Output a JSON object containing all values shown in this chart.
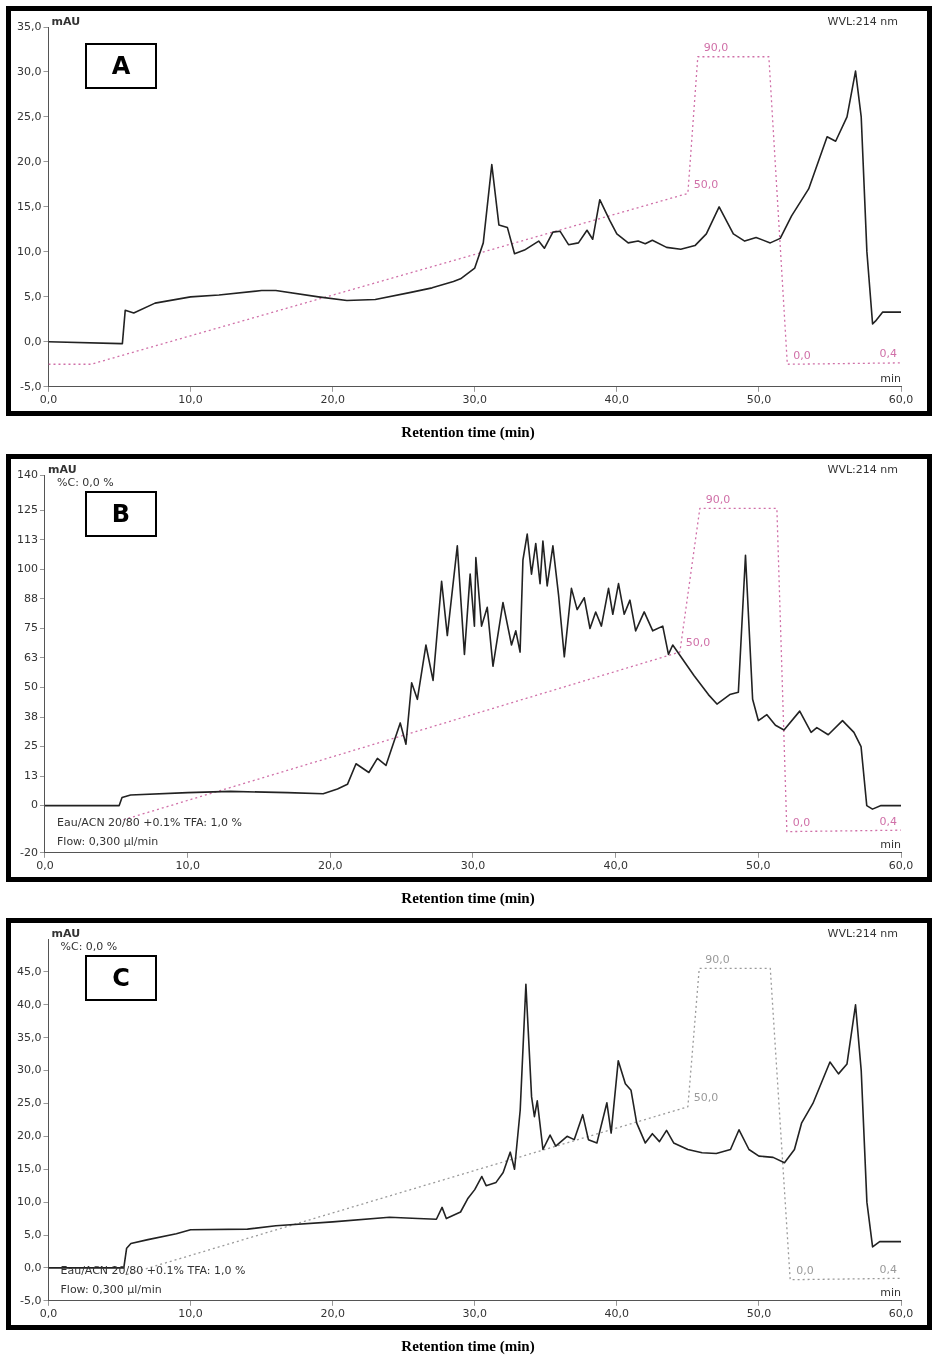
{
  "chart_data": [
    {
      "type": "line",
      "title": "A",
      "xlabel": "Retention  time (min)",
      "ylabel": "mAU",
      "xlim": [
        0,
        60
      ],
      "xticks": [
        {
          "value": 0,
          "label": "0,0"
        },
        {
          "value": 10,
          "label": "10,0"
        },
        {
          "value": 20,
          "label": "20,0"
        },
        {
          "value": 30,
          "label": "30,0"
        },
        {
          "value": 40,
          "label": "40,0"
        },
        {
          "value": 50,
          "label": "50,0"
        },
        {
          "value": 60,
          "label": "60,0"
        }
      ],
      "ylim": [
        -5,
        35
      ],
      "yticks": [
        {
          "value": -5,
          "label": "-5,0"
        },
        {
          "value": 0,
          "label": "0,0"
        },
        {
          "value": 5,
          "label": "5,0"
        },
        {
          "value": 10,
          "label": "10,0"
        },
        {
          "value": 15,
          "label": "15,0"
        },
        {
          "value": 20,
          "label": "20,0"
        },
        {
          "value": 25,
          "label": "25,0"
        },
        {
          "value": 30,
          "label": "30,0"
        },
        {
          "value": 35,
          "label": "35,0"
        }
      ],
      "series": [
        {
          "color": "#222222",
          "x": [
            0,
            5.1,
            5.2,
            5.4,
            6,
            7.5,
            10,
            12,
            15,
            16,
            19,
            21,
            23,
            25.5,
            27,
            28.5,
            29,
            30,
            30.6,
            31.2,
            31.7,
            32.3,
            32.8,
            33.5,
            34.5,
            34.9,
            35.5,
            36,
            36.6,
            37.3,
            37.9,
            38.3,
            38.8,
            39.5,
            40,
            40.8,
            41.5,
            42,
            42.5,
            43.5,
            44.5,
            45.5,
            46.3,
            47.2,
            48.2,
            49,
            49.8,
            50.8,
            51.5,
            52.3,
            53.5,
            54.8,
            55.4,
            56.2,
            56.8,
            57.2,
            57.6,
            58,
            58.2,
            58.7,
            60
          ],
          "values": [
            0,
            -0.2,
            -0.2,
            3.5,
            3.2,
            4.3,
            5,
            5.2,
            5.7,
            5.7,
            5,
            4.6,
            4.7,
            5.5,
            6,
            6.7,
            7,
            8.2,
            11,
            19.7,
            13,
            12.7,
            9.8,
            10.2,
            11.2,
            10.4,
            12.2,
            12.3,
            10.8,
            11,
            12.4,
            11.4,
            15.8,
            13.5,
            12,
            11,
            11.2,
            10.9,
            11.3,
            10.5,
            10.3,
            10.7,
            12,
            15,
            12,
            11.2,
            11.6,
            11,
            11.5,
            14,
            17,
            22.8,
            22.3,
            25,
            30.1,
            25,
            10,
            2,
            2.3,
            3.3,
            3.3
          ]
        },
        {
          "color": "#d070a8",
          "line_style": "dotted",
          "axis": "y2",
          "x": [
            0,
            3,
            45,
            45.7,
            50.7,
            52,
            60
          ],
          "values": [
            0,
            0,
            50,
            90,
            90,
            0,
            0.4
          ],
          "value_labels": [
            null,
            null,
            "50,0",
            "90,0",
            null,
            "0,0",
            "0,4"
          ]
        }
      ],
      "y2lim": [
        -6.6,
        98.7
      ],
      "annotations": [
        "WVL:214 nm",
        "min"
      ]
    },
    {
      "type": "line",
      "title": "B",
      "xlabel": "Retention  time (min)",
      "ylabel": "mAU",
      "xlim": [
        0,
        60
      ],
      "xticks": [
        {
          "value": 0,
          "label": "0,0"
        },
        {
          "value": 10,
          "label": "10,0"
        },
        {
          "value": 20,
          "label": "20,0"
        },
        {
          "value": 30,
          "label": "30,0"
        },
        {
          "value": 40,
          "label": "40,0"
        },
        {
          "value": 50,
          "label": "50,0"
        },
        {
          "value": 60,
          "label": "60,0"
        }
      ],
      "ylim": [
        -20,
        140
      ],
      "yticks": [
        {
          "value": -20,
          "label": "-20"
        },
        0,
        {
          "value": 12.5,
          "label": "13"
        },
        25,
        {
          "value": 37.5,
          "label": "38"
        },
        50,
        {
          "value": 62.5,
          "label": "63"
        },
        75,
        {
          "value": 87.5,
          "label": "88"
        },
        100,
        {
          "value": 112.5,
          "label": "113"
        },
        125,
        140
      ],
      "series": [
        {
          "color": "#222222",
          "x": [
            0,
            5.2,
            5.4,
            6,
            10,
            13,
            17,
            19.5,
            20.5,
            21.2,
            21.8,
            22.7,
            23.3,
            23.9,
            24.9,
            25.3,
            25.7,
            26.1,
            26.7,
            27.2,
            27.8,
            28.2,
            28.9,
            29.4,
            29.8,
            30.1,
            30.2,
            30.6,
            31,
            31.4,
            32.1,
            32.7,
            33,
            33.3,
            33.5,
            33.8,
            34.1,
            34.4,
            34.7,
            34.9,
            35.2,
            35.6,
            36,
            36.4,
            36.9,
            37.3,
            37.8,
            38.2,
            38.6,
            39,
            39.5,
            39.8,
            40.2,
            40.6,
            41,
            41.4,
            42,
            42.6,
            43.3,
            43.7,
            44,
            45.5,
            46.5,
            47.1,
            48,
            48.6,
            49.1,
            49.6,
            50,
            50.6,
            51.2,
            51.8,
            52.9,
            53.7,
            54.1,
            54.9,
            55.9,
            56.7,
            57.2,
            57.6,
            58,
            58.6,
            60
          ],
          "values": [
            0,
            0,
            3.4,
            4.5,
            5.5,
            6,
            5.5,
            5,
            7,
            9,
            17.7,
            14,
            20,
            17,
            35,
            26,
            52,
            45,
            68,
            53,
            95,
            72,
            110,
            64,
            98,
            76,
            105,
            76,
            84,
            59,
            86,
            68,
            74,
            65,
            104,
            115,
            98,
            111,
            94,
            112,
            93,
            110,
            89,
            63,
            92,
            83,
            88,
            75,
            82,
            76,
            92,
            81,
            94,
            81,
            87,
            74,
            82,
            74,
            76,
            64,
            68,
            55,
            47,
            43,
            47,
            48,
            106,
            45,
            36,
            38.5,
            34,
            32,
            40,
            31,
            33,
            30,
            36,
            31,
            25,
            0,
            -1.5,
            0,
            0
          ]
        },
        {
          "color": "#d070a8",
          "line_style": "dotted",
          "axis": "y2",
          "x": [
            5.5,
            44.5,
            45.9,
            51.3,
            52,
            60
          ],
          "values": [
            3.3,
            50,
            90,
            90,
            0,
            0.4
          ],
          "value_labels": [
            null,
            "50,0",
            "90,0",
            null,
            "0,0",
            "0,4"
          ]
        }
      ],
      "y2lim": [
        -5.9,
        99.3
      ],
      "annotations": [
        "WVL:214 nm",
        "min",
        "%C: 0,0 %",
        "Eau/ACN 20/80 +0.1% TFA: 1,0 %",
        "Flow: 0,300 µl/min"
      ]
    },
    {
      "type": "line",
      "title": "C",
      "xlabel": "Retention  time (min)",
      "ylabel": "mAU",
      "xlim": [
        0,
        60
      ],
      "xticks": [
        {
          "value": 0,
          "label": "0,0"
        },
        {
          "value": 10,
          "label": "10,0"
        },
        {
          "value": 20,
          "label": "20,0"
        },
        {
          "value": 30,
          "label": "30,0"
        },
        {
          "value": 40,
          "label": "40,0"
        },
        {
          "value": 50,
          "label": "50,0"
        },
        {
          "value": 60,
          "label": "60,0"
        }
      ],
      "ylim": [
        -5,
        50
      ],
      "yticks": [
        {
          "value": -5,
          "label": "-5,0"
        },
        {
          "value": 0,
          "label": "0,0"
        },
        {
          "value": 5,
          "label": "5,0"
        },
        {
          "value": 10,
          "label": "10,0"
        },
        {
          "value": 15,
          "label": "15,0"
        },
        {
          "value": 20,
          "label": "20,0"
        },
        {
          "value": 25,
          "label": "25,0"
        },
        {
          "value": 30,
          "label": "30,0"
        },
        {
          "value": 35,
          "label": "35,0"
        },
        {
          "value": 40,
          "label": "40,0"
        },
        {
          "value": 45,
          "label": "45,0"
        }
      ],
      "series": [
        {
          "color": "#222222",
          "x": [
            0,
            5.3,
            5.5,
            5.8,
            7,
            9,
            10,
            14,
            16,
            20,
            24,
            26,
            27.3,
            27.7,
            28,
            29,
            29.5,
            30,
            30.5,
            30.8,
            31.5,
            32,
            32.5,
            32.8,
            33.2,
            33.6,
            34,
            34.2,
            34.4,
            34.8,
            35.3,
            35.7,
            36.5,
            37,
            37.6,
            38,
            38.6,
            39.3,
            39.6,
            40.1,
            40.6,
            41,
            41.4,
            42,
            42.5,
            43,
            43.5,
            44,
            45,
            46,
            47,
            48,
            48.6,
            49.3,
            50,
            51,
            51.8,
            52.5,
            53,
            53.8,
            55,
            55.6,
            56.2,
            56.8,
            57.2,
            57.6,
            58,
            58.5,
            60
          ],
          "values": [
            0,
            0,
            3,
            3.7,
            4.3,
            5.2,
            5.8,
            5.9,
            6.4,
            7,
            7.7,
            7.5,
            7.4,
            9.2,
            7.5,
            8.5,
            10.5,
            11.9,
            13.9,
            12.5,
            13,
            14.5,
            17.6,
            15,
            24,
            43.1,
            26,
            23,
            25.4,
            18,
            20.2,
            18.5,
            20,
            19.5,
            23.3,
            19.5,
            19,
            25.1,
            20.5,
            31.5,
            28,
            27,
            22,
            19,
            20.4,
            19.2,
            20.9,
            19,
            18,
            17.5,
            17.4,
            18,
            21,
            18,
            17,
            16.8,
            16,
            18,
            22,
            25,
            31.3,
            29.5,
            31,
            40,
            30,
            10,
            3.2,
            4,
            4
          ]
        },
        {
          "color": "#9a9a9a",
          "line_style": "dotted",
          "axis": "y2",
          "x": [
            5.5,
            45,
            45.8,
            50.8,
            52.2,
            60
          ],
          "values": [
            1.5,
            50,
            90,
            90,
            0,
            0.4
          ],
          "value_labels": [
            null,
            "50,0",
            "90,0",
            null,
            "0,0",
            "0,4"
          ]
        }
      ],
      "y2lim": [
        -6.1,
        98.5
      ],
      "annotations": [
        "WVL:214 nm",
        "min",
        "%C: 0,0 %",
        "Eau/ACN 20/80 +0.1% TFA: 1,0 %",
        "Flow: 0,300 µl/min"
      ]
    }
  ]
}
